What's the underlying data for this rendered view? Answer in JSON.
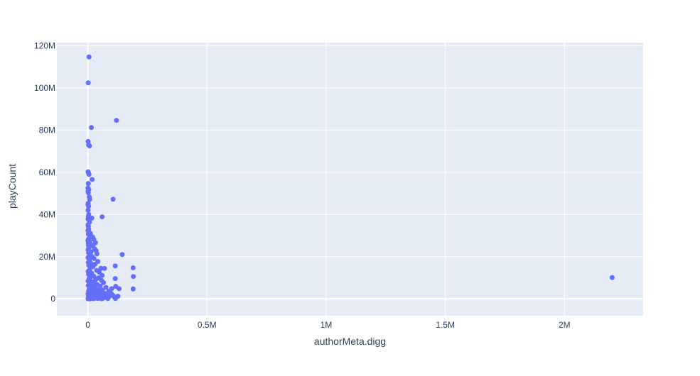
{
  "chart_data": {
    "type": "scatter",
    "title": "",
    "xlabel": "authorMeta.digg",
    "ylabel": "playCount",
    "xlim": [
      -130000,
      2330000
    ],
    "ylim": [
      -8000000,
      121500000
    ],
    "xticks": [
      {
        "value": 0,
        "label": "0"
      },
      {
        "value": 500000,
        "label": "0.5M"
      },
      {
        "value": 1000000,
        "label": "1M"
      },
      {
        "value": 1500000,
        "label": "1.5M"
      },
      {
        "value": 2000000,
        "label": "2M"
      }
    ],
    "yticks": [
      {
        "value": 0,
        "label": "0"
      },
      {
        "value": 20000000,
        "label": "20M"
      },
      {
        "value": 40000000,
        "label": "40M"
      },
      {
        "value": 60000000,
        "label": "60M"
      },
      {
        "value": 80000000,
        "label": "80M"
      },
      {
        "value": 100000000,
        "label": "100M"
      },
      {
        "value": 120000000,
        "label": "120M"
      }
    ],
    "grid": true,
    "marker_color": "#636efa",
    "plot_bgcolor": "#e5ecf6",
    "series": [
      {
        "points": [
          [
            5000,
            114700000
          ],
          [
            1500,
            102400000
          ],
          [
            15000,
            81200000
          ],
          [
            120000,
            84600000
          ],
          [
            1000,
            74600000
          ],
          [
            3000,
            73000000
          ],
          [
            7000,
            72500000
          ],
          [
            1000,
            60200000
          ],
          [
            3000,
            59600000
          ],
          [
            5000,
            59000000
          ],
          [
            18000,
            56600000
          ],
          [
            2000,
            54700000
          ],
          [
            500,
            52500000
          ],
          [
            4000,
            51800000
          ],
          [
            1000,
            51000000
          ],
          [
            2000,
            50300000
          ],
          [
            6000,
            48300000
          ],
          [
            8000,
            47200000
          ],
          [
            106000,
            47200000
          ],
          [
            1500,
            45300000
          ],
          [
            500,
            44600000
          ],
          [
            3000,
            43900000
          ],
          [
            1000,
            42000000
          ],
          [
            4000,
            40000000
          ],
          [
            2000,
            39000000
          ],
          [
            60000,
            38900000
          ],
          [
            17000,
            38300000
          ],
          [
            1000,
            37800000
          ],
          [
            7000,
            36400000
          ],
          [
            1000,
            35100000
          ],
          [
            2000,
            34400000
          ],
          [
            3500,
            33100000
          ],
          [
            500,
            32300000
          ],
          [
            6000,
            31500000
          ],
          [
            2000,
            30700000
          ],
          [
            9000,
            30200000
          ],
          [
            15000,
            29600000
          ],
          [
            20000,
            29300000
          ],
          [
            3000,
            28500000
          ],
          [
            25000,
            28200000
          ],
          [
            500,
            27600000
          ],
          [
            7000,
            27200000
          ],
          [
            32000,
            26600000
          ],
          [
            12000,
            26000000
          ],
          [
            2000,
            25500000
          ],
          [
            22000,
            25000000
          ],
          [
            5000,
            24400000
          ],
          [
            28000,
            23700000
          ],
          [
            1000,
            23300000
          ],
          [
            35000,
            22800000
          ],
          [
            14000,
            22300000
          ],
          [
            3000,
            21800000
          ],
          [
            38000,
            21300000
          ],
          [
            144000,
            21000000
          ],
          [
            9000,
            20600000
          ],
          [
            18000,
            20100000
          ],
          [
            1000,
            19600000
          ],
          [
            26000,
            19100000
          ],
          [
            6000,
            18600000
          ],
          [
            42000,
            17700000
          ],
          [
            2000,
            17200000
          ],
          [
            13000,
            16800000
          ],
          [
            30000,
            16400000
          ],
          [
            4000,
            15900000
          ],
          [
            115000,
            15600000
          ],
          [
            21000,
            15200000
          ],
          [
            55000,
            14500000
          ],
          [
            70000,
            14400000
          ],
          [
            190000,
            14700000
          ],
          [
            8000,
            14000000
          ],
          [
            37000,
            13500000
          ],
          [
            1500,
            13000000
          ],
          [
            48000,
            12600000
          ],
          [
            16000,
            12100000
          ],
          [
            3000,
            11600000
          ],
          [
            60000,
            11100000
          ],
          [
            25000,
            10700000
          ],
          [
            191000,
            10600000
          ],
          [
            11000,
            10200000
          ],
          [
            2200000,
            10100000
          ],
          [
            45000,
            9900000
          ],
          [
            115000,
            9600000
          ],
          [
            5000,
            9500000
          ],
          [
            33000,
            9100000
          ],
          [
            58000,
            8700000
          ],
          [
            1000,
            8400000
          ],
          [
            19000,
            8000000
          ],
          [
            66000,
            7700000
          ],
          [
            27000,
            7300000
          ],
          [
            9000,
            7000000
          ],
          [
            40000,
            6700000
          ],
          [
            2000,
            6300000
          ],
          [
            52000,
            6100000
          ],
          [
            117000,
            5900000
          ],
          [
            14000,
            5800000
          ],
          [
            76000,
            5400000
          ],
          [
            30000,
            5200000
          ],
          [
            100000,
            4800000
          ],
          [
            131000,
            4800000
          ],
          [
            190000,
            4700000
          ],
          [
            6000,
            4500000
          ],
          [
            47000,
            4300000
          ],
          [
            61000,
            4100000
          ],
          [
            22000,
            3900000
          ],
          [
            88000,
            3600000
          ],
          [
            3000,
            3400000
          ],
          [
            35000,
            3300000
          ],
          [
            54000,
            3000000
          ],
          [
            11000,
            2800000
          ],
          [
            70000,
            2600000
          ],
          [
            98000,
            2500000
          ],
          [
            1000,
            2300000
          ],
          [
            26000,
            2200000
          ],
          [
            44000,
            2000000
          ],
          [
            79000,
            1900000
          ],
          [
            15000,
            1700000
          ],
          [
            106000,
            1600000
          ],
          [
            4000,
            1500000
          ],
          [
            37000,
            1400000
          ],
          [
            60000,
            1300000
          ],
          [
            126000,
            1200000
          ],
          [
            90000,
            1100000
          ],
          [
            8000,
            1000000
          ],
          [
            20000,
            900000
          ],
          [
            50000,
            800000
          ],
          [
            112000,
            700000
          ],
          [
            72000,
            600000
          ],
          [
            2000,
            500000
          ],
          [
            31000,
            400000
          ],
          [
            64000,
            300000
          ],
          [
            13000,
            250000
          ],
          [
            41000,
            200000
          ],
          [
            116000,
            150000
          ],
          [
            84000,
            100000
          ],
          [
            5000,
            80000
          ],
          [
            24000,
            60000
          ],
          [
            57000,
            40000
          ],
          [
            10000,
            20000
          ],
          [
            1000,
            10000
          ],
          [
            3000,
            1200000
          ],
          [
            6000,
            2700000
          ],
          [
            9500,
            6800000
          ],
          [
            12500,
            12300000
          ],
          [
            7500,
            17400000
          ],
          [
            4500,
            22000000
          ],
          [
            2500,
            26300000
          ],
          [
            10500,
            31000000
          ]
        ]
      }
    ]
  }
}
